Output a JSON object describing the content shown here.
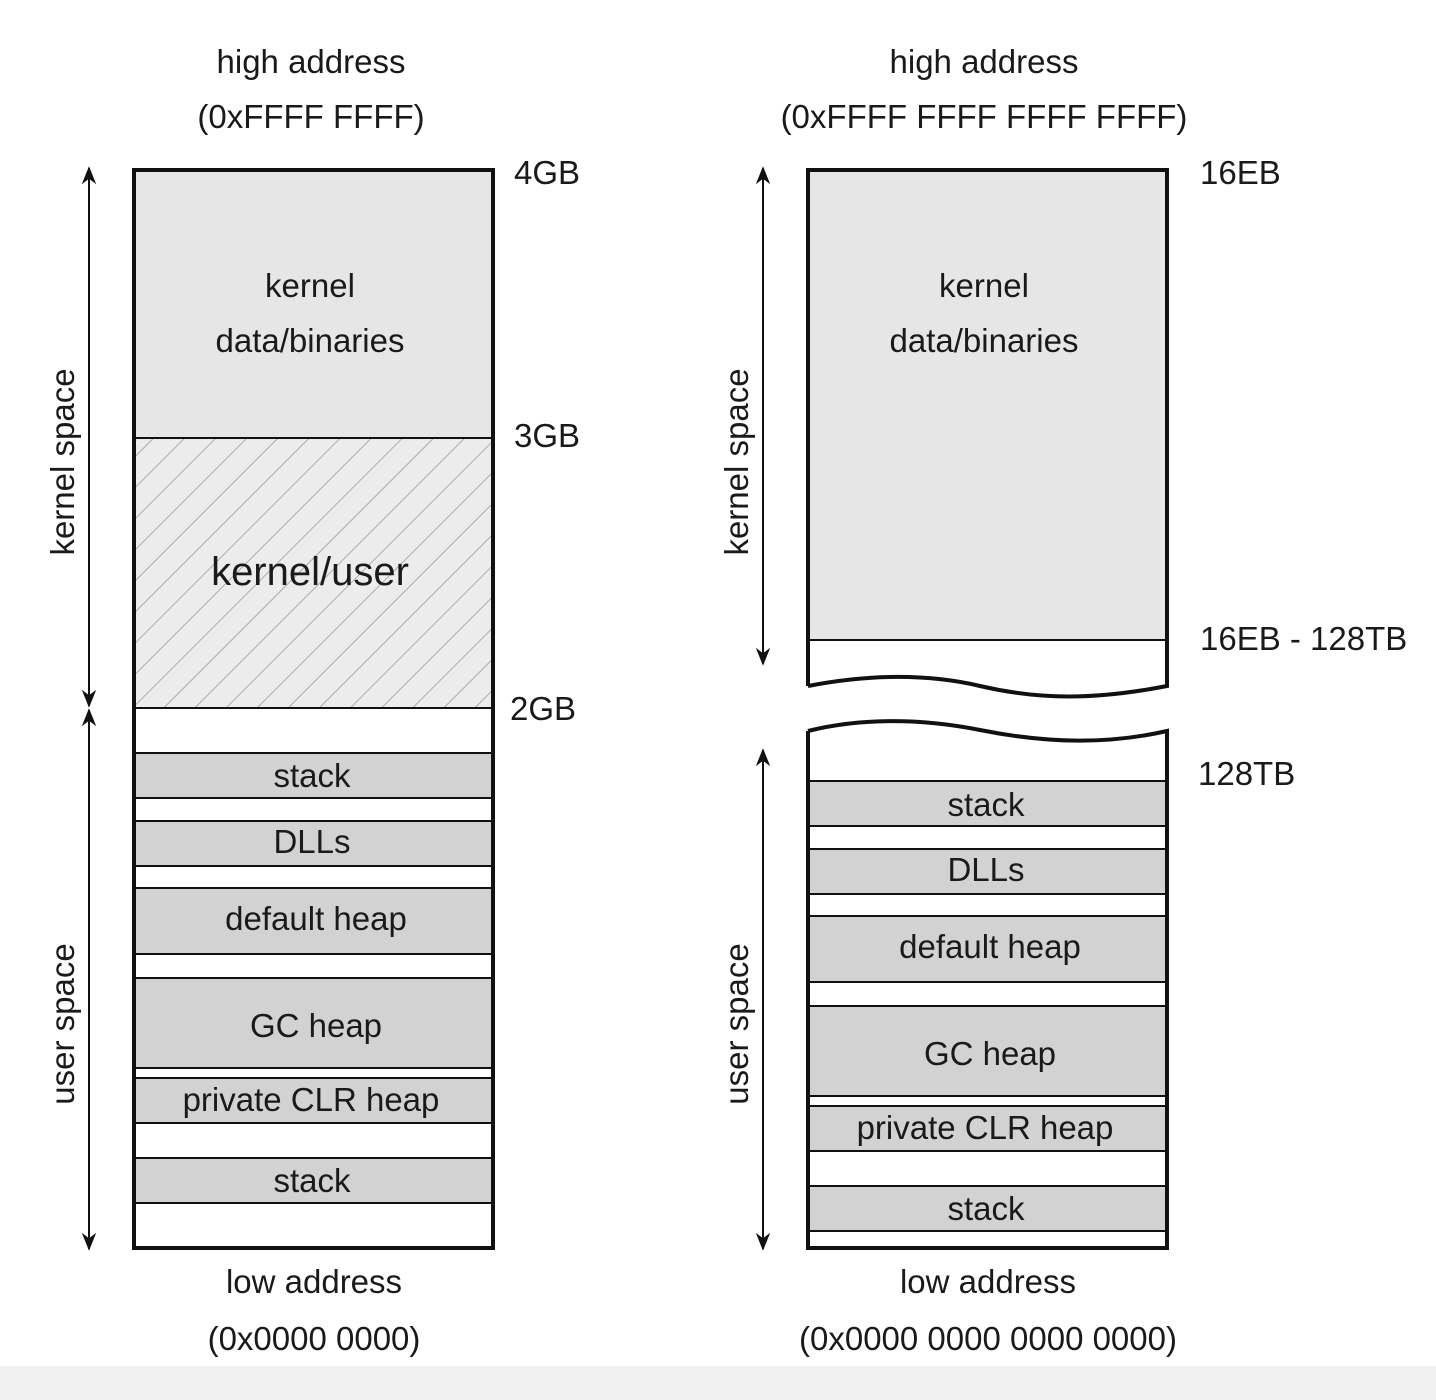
{
  "colors": {
    "kernel_fill": "#e6e6e6",
    "segment_fill": "#d2d2d2",
    "hatch_bg": "#ececec",
    "hatch_line": "#8a8a8a",
    "outline": "#111111",
    "text": "#1a1a1a"
  },
  "left": {
    "top_label": "high address",
    "top_address": "(0xFFFF FFFF)",
    "bottom_label": "low address",
    "bottom_address": "(0x0000 0000)",
    "markers": [
      "4GB",
      "3GB",
      "2GB"
    ],
    "kernel_block": [
      "kernel",
      "data/binaries"
    ],
    "shared_block": "kernel/user",
    "segments": [
      "stack",
      "DLLs",
      "default heap",
      "GC heap",
      "private CLR heap",
      "stack"
    ],
    "kernel_space_label": "kernel space",
    "user_space_label": "user space"
  },
  "right": {
    "top_label": "high address",
    "top_address": "(0xFFFF FFFF FFFF FFFF)",
    "bottom_label": "low address",
    "bottom_address": "(0x0000 0000 0000 0000)",
    "markers": [
      "16EB",
      "16EB - 128TB",
      "128TB"
    ],
    "kernel_block": [
      "kernel",
      "data/binaries"
    ],
    "segments": [
      "stack",
      "DLLs",
      "default heap",
      "GC heap",
      "private CLR heap",
      "stack"
    ],
    "kernel_space_label": "kernel space",
    "user_space_label": "user space"
  }
}
